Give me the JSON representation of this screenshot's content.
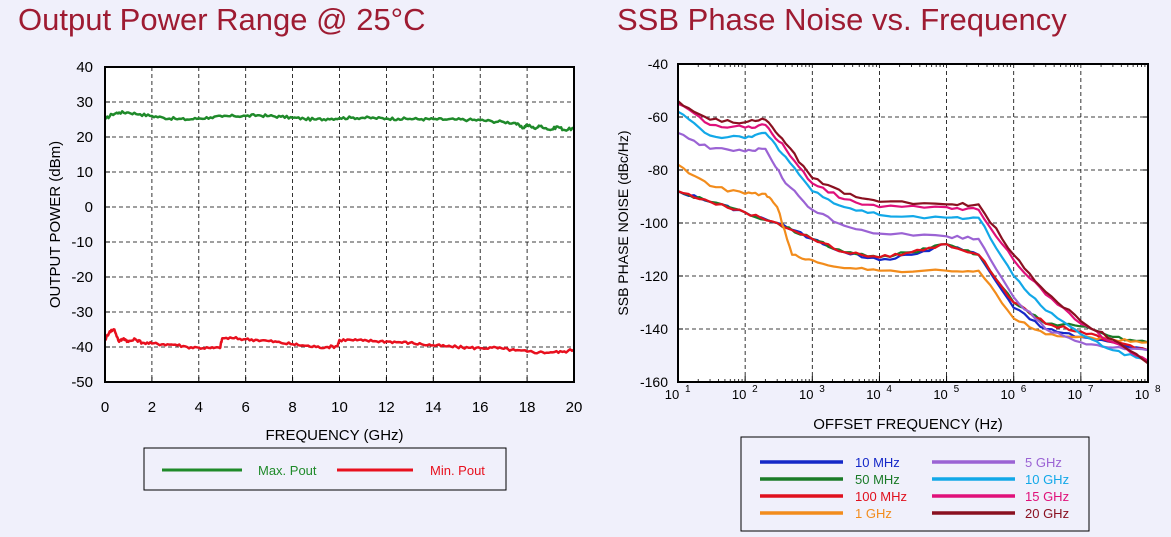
{
  "chart_data": [
    {
      "type": "line",
      "title": "Output Power Range @ 25°C",
      "xlabel": "FREQUENCY (GHz)",
      "ylabel": "OUTPUT POWER (dBm)",
      "xlim": [
        0,
        20
      ],
      "ylim": [
        -50,
        40
      ],
      "xticks": [
        "0",
        "2",
        "4",
        "6",
        "8",
        "10",
        "12",
        "14",
        "16",
        "18",
        "20"
      ],
      "yticks": [
        "40",
        "30",
        "20",
        "10",
        "0",
        "-10",
        "-20",
        "-30",
        "-40",
        "-50"
      ],
      "grid": true,
      "legend_position": "below",
      "series": [
        {
          "name": "Max. Pout",
          "color": "#1f8a2a",
          "points": [
            [
              0,
              25
            ],
            [
              0.3,
              26.5
            ],
            [
              0.6,
              27
            ],
            [
              1,
              27
            ],
            [
              1.5,
              26.5
            ],
            [
              2,
              26
            ],
            [
              2.5,
              25.5
            ],
            [
              3,
              25.2
            ],
            [
              3.5,
              25
            ],
            [
              4,
              25.3
            ],
            [
              4.5,
              25.6
            ],
            [
              5,
              25.8
            ],
            [
              5.5,
              26
            ],
            [
              6,
              26
            ],
            [
              6.5,
              26.2
            ],
            [
              7,
              26
            ],
            [
              7.5,
              25.8
            ],
            [
              8,
              25.5
            ],
            [
              8.5,
              25.2
            ],
            [
              9,
              25
            ],
            [
              9.5,
              25.2
            ],
            [
              10,
              25.4
            ],
            [
              10.5,
              25.5
            ],
            [
              11,
              25.5
            ],
            [
              11.5,
              25.4
            ],
            [
              12,
              25.3
            ],
            [
              12.5,
              25.2
            ],
            [
              13,
              25.2
            ],
            [
              13.5,
              25.1
            ],
            [
              14,
              25.1
            ],
            [
              14.5,
              25
            ],
            [
              15,
              25
            ],
            [
              15.5,
              24.9
            ],
            [
              16,
              24.8
            ],
            [
              16.5,
              24.5
            ],
            [
              17,
              24.3
            ],
            [
              17.5,
              24
            ],
            [
              17.8,
              22.5
            ],
            [
              18,
              23.5
            ],
            [
              18.3,
              22.5
            ],
            [
              18.6,
              23.2
            ],
            [
              19,
              22
            ],
            [
              19.3,
              23
            ],
            [
              19.6,
              22
            ],
            [
              20,
              22.5
            ]
          ]
        },
        {
          "name": "Min. Pout",
          "color": "#e8101e",
          "points": [
            [
              0,
              -38
            ],
            [
              0.2,
              -35.5
            ],
            [
              0.4,
              -35
            ],
            [
              0.6,
              -38.5
            ],
            [
              0.8,
              -37.5
            ],
            [
              1,
              -38.5
            ],
            [
              1.3,
              -37.8
            ],
            [
              1.6,
              -38.8
            ],
            [
              2,
              -39
            ],
            [
              2.5,
              -39.2
            ],
            [
              3,
              -39.3
            ],
            [
              3.5,
              -40
            ],
            [
              4,
              -40.2
            ],
            [
              4.5,
              -40.3
            ],
            [
              4.9,
              -40.3
            ],
            [
              5,
              -37.5
            ],
            [
              5.5,
              -37.5
            ],
            [
              6,
              -37.8
            ],
            [
              6.5,
              -38
            ],
            [
              7,
              -38.3
            ],
            [
              7.5,
              -38.8
            ],
            [
              8,
              -39.2
            ],
            [
              8.5,
              -39.6
            ],
            [
              9,
              -40
            ],
            [
              9.5,
              -40
            ],
            [
              9.9,
              -39.8
            ],
            [
              10,
              -38
            ],
            [
              10.5,
              -38
            ],
            [
              11,
              -38.2
            ],
            [
              11.5,
              -38.3
            ],
            [
              12,
              -38.4
            ],
            [
              12.5,
              -38.6
            ],
            [
              13,
              -38.8
            ],
            [
              13.5,
              -39.2
            ],
            [
              14,
              -39.5
            ],
            [
              14.5,
              -39.8
            ],
            [
              15,
              -40
            ],
            [
              15.5,
              -40.2
            ],
            [
              16,
              -40.3
            ],
            [
              16.5,
              -40.2
            ],
            [
              17,
              -40.5
            ],
            [
              17.5,
              -41
            ],
            [
              18,
              -41.3
            ],
            [
              18.5,
              -41.5
            ],
            [
              19,
              -41.5
            ],
            [
              19.5,
              -41.4
            ],
            [
              20,
              -40.8
            ]
          ]
        }
      ]
    },
    {
      "type": "line",
      "title": "SSB Phase Noise vs. Frequency",
      "xlabel": "OFFSET FREQUENCY  (Hz)",
      "ylabel": "SSB PHASE NOISE (dBc/Hz)",
      "x_scale": "log",
      "xlim": [
        10,
        100000000
      ],
      "ylim": [
        -160,
        -40
      ],
      "xtick_exponents": [
        "1",
        "2",
        "3",
        "4",
        "5",
        "6",
        "7",
        "8"
      ],
      "yticks": [
        "-40",
        "-60",
        "-80",
        "-100",
        "-120",
        "-140",
        "-160"
      ],
      "grid": true,
      "legend_position": "below",
      "series": [
        {
          "name": "10 MHz",
          "color": "#1428c8",
          "points": [
            [
              10,
              -88
            ],
            [
              30,
              -92
            ],
            [
              100,
              -96
            ],
            [
              300,
              -100
            ],
            [
              1000,
              -106
            ],
            [
              3000,
              -111
            ],
            [
              10000,
              -114
            ],
            [
              30000,
              -112
            ],
            [
              100000,
              -108
            ],
            [
              300000,
              -112
            ],
            [
              1000000,
              -132
            ],
            [
              3000000,
              -140
            ],
            [
              10000000,
              -143
            ],
            [
              30000000,
              -145
            ],
            [
              100000000,
              -148
            ]
          ]
        },
        {
          "name": "50 MHz",
          "color": "#1a7a28",
          "points": [
            [
              10,
              -88
            ],
            [
              30,
              -92
            ],
            [
              100,
              -96
            ],
            [
              300,
              -100
            ],
            [
              1000,
              -106
            ],
            [
              3000,
              -111
            ],
            [
              10000,
              -113
            ],
            [
              30000,
              -111
            ],
            [
              100000,
              -108
            ],
            [
              300000,
              -112
            ],
            [
              1000000,
              -130
            ],
            [
              3000000,
              -138
            ],
            [
              10000000,
              -139
            ],
            [
              30000000,
              -143
            ],
            [
              100000000,
              -145
            ]
          ]
        },
        {
          "name": "100 MHz",
          "color": "#e0101e",
          "points": [
            [
              10,
              -88
            ],
            [
              30,
              -92
            ],
            [
              100,
              -96
            ],
            [
              300,
              -100
            ],
            [
              1000,
              -106
            ],
            [
              3000,
              -111
            ],
            [
              10000,
              -113
            ],
            [
              30000,
              -111
            ],
            [
              100000,
              -108
            ],
            [
              300000,
              -112
            ],
            [
              1000000,
              -130
            ],
            [
              3000000,
              -138
            ],
            [
              10000000,
              -141
            ],
            [
              30000000,
              -145
            ],
            [
              100000000,
              -148
            ]
          ]
        },
        {
          "name": "1 GHz",
          "color": "#f28c1c",
          "points": [
            [
              10,
              -78
            ],
            [
              30,
              -86
            ],
            [
              100,
              -89
            ],
            [
              200,
              -89
            ],
            [
              300,
              -94
            ],
            [
              500,
              -112
            ],
            [
              1000,
              -114
            ],
            [
              3000,
              -117
            ],
            [
              10000,
              -118
            ],
            [
              100000,
              -118
            ],
            [
              300000,
              -118
            ],
            [
              1000000,
              -136
            ],
            [
              3000000,
              -142
            ],
            [
              10000000,
              -143
            ],
            [
              30000000,
              -144
            ],
            [
              100000000,
              -145
            ]
          ]
        },
        {
          "name": "5 GHz",
          "color": "#9b63d4",
          "points": [
            [
              10,
              -66
            ],
            [
              30,
              -72
            ],
            [
              100,
              -73
            ],
            [
              200,
              -72
            ],
            [
              400,
              -85
            ],
            [
              1000,
              -95
            ],
            [
              3000,
              -101
            ],
            [
              10000,
              -104
            ],
            [
              100000,
              -105
            ],
            [
              300000,
              -106
            ],
            [
              1000000,
              -128
            ],
            [
              3000000,
              -140
            ],
            [
              10000000,
              -145
            ],
            [
              30000000,
              -147
            ],
            [
              100000000,
              -148
            ]
          ]
        },
        {
          "name": "10 GHz",
          "color": "#12a8e8",
          "points": [
            [
              10,
              -58
            ],
            [
              30,
              -67
            ],
            [
              100,
              -68
            ],
            [
              200,
              -66
            ],
            [
              400,
              -75
            ],
            [
              1000,
              -88
            ],
            [
              3000,
              -94
            ],
            [
              10000,
              -97
            ],
            [
              100000,
              -98
            ],
            [
              300000,
              -98
            ],
            [
              1000000,
              -120
            ],
            [
              3000000,
              -133
            ],
            [
              10000000,
              -142
            ],
            [
              30000000,
              -148
            ],
            [
              100000000,
              -152
            ]
          ]
        },
        {
          "name": "15 GHz",
          "color": "#e0107a",
          "points": [
            [
              10,
              -55
            ],
            [
              30,
              -63
            ],
            [
              100,
              -64
            ],
            [
              200,
              -63
            ],
            [
              400,
              -72
            ],
            [
              1000,
              -85
            ],
            [
              3000,
              -91
            ],
            [
              10000,
              -94
            ],
            [
              100000,
              -94
            ],
            [
              300000,
              -95
            ],
            [
              1000000,
              -114
            ],
            [
              3000000,
              -127
            ],
            [
              10000000,
              -138
            ],
            [
              30000000,
              -145
            ],
            [
              100000000,
              -152
            ]
          ]
        },
        {
          "name": "20 GHz",
          "color": "#8a1020",
          "points": [
            [
              10,
              -54
            ],
            [
              30,
              -61
            ],
            [
              100,
              -62
            ],
            [
              200,
              -61
            ],
            [
              400,
              -70
            ],
            [
              1000,
              -83
            ],
            [
              3000,
              -89
            ],
            [
              10000,
              -92
            ],
            [
              100000,
              -93
            ],
            [
              300000,
              -93
            ],
            [
              1000000,
              -112
            ],
            [
              3000000,
              -126
            ],
            [
              10000000,
              -137
            ],
            [
              30000000,
              -144
            ],
            [
              100000000,
              -153
            ]
          ]
        }
      ]
    }
  ]
}
